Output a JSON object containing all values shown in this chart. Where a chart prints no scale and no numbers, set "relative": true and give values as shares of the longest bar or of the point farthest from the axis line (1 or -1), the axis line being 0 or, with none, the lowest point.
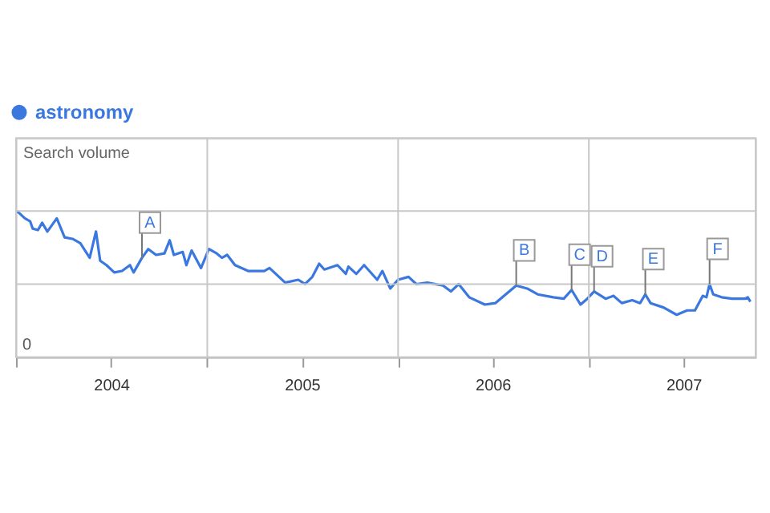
{
  "chart_data": {
    "type": "line",
    "relative": true,
    "ylabel": "Search volume",
    "legend": "top left",
    "grid": true,
    "line_style": "solid",
    "marker": "none",
    "x": [
      "2004-01-03",
      "2004-01-18",
      "2004-01-28",
      "2004-02-02",
      "2004-02-12",
      "2004-02-20",
      "2004-03-01",
      "2004-03-19",
      "2004-04-03",
      "2004-04-18",
      "2004-05-03",
      "2004-05-21",
      "2004-06-02",
      "2004-06-10",
      "2004-06-22",
      "2004-07-07",
      "2004-07-22",
      "2004-08-06",
      "2004-08-13",
      "2004-08-29",
      "2004-09-10",
      "2004-09-25",
      "2004-10-11",
      "2004-10-21",
      "2004-10-29",
      "2004-11-15",
      "2004-11-22",
      "2004-12-02",
      "2004-12-20",
      "2005-01-04",
      "2005-01-19",
      "2005-01-29",
      "2005-02-08",
      "2005-02-23",
      "2005-03-20",
      "2005-04-20",
      "2005-04-30",
      "2005-05-30",
      "2005-06-24",
      "2005-07-07",
      "2005-07-21",
      "2005-08-03",
      "2005-08-13",
      "2005-09-07",
      "2005-09-23",
      "2005-09-28",
      "2005-10-13",
      "2005-10-28",
      "2005-11-07",
      "2005-11-22",
      "2005-12-02",
      "2005-12-17",
      "2006-01-01",
      "2006-01-21",
      "2006-02-05",
      "2006-02-26",
      "2006-03-28",
      "2006-04-12",
      "2006-04-27",
      "2006-05-17",
      "2006-06-16",
      "2006-07-06",
      "2006-08-15",
      "2006-09-05",
      "2006-09-25",
      "2006-10-25",
      "2006-11-14",
      "2006-11-29",
      "2006-12-16",
      "2006-12-29",
      "2007-01-11",
      "2007-02-02",
      "2007-02-17",
      "2007-03-05",
      "2007-03-25",
      "2007-04-09",
      "2007-04-19",
      "2007-04-29",
      "2007-05-24",
      "2007-06-18",
      "2007-07-08",
      "2007-07-23",
      "2007-08-07",
      "2007-08-14",
      "2007-08-20",
      "2007-08-27",
      "2007-09-12",
      "2007-10-02",
      "2007-10-27",
      "2007-11-01",
      "2007-11-06"
    ],
    "series": [
      {
        "name": "astronomy",
        "color": "#3a78e0",
        "values": [
          1.0,
          0.95,
          0.93,
          0.88,
          0.87,
          0.92,
          0.86,
          0.95,
          0.82,
          0.81,
          0.78,
          0.68,
          0.86,
          0.66,
          0.63,
          0.58,
          0.59,
          0.63,
          0.58,
          0.68,
          0.74,
          0.7,
          0.71,
          0.8,
          0.7,
          0.72,
          0.63,
          0.73,
          0.61,
          0.74,
          0.71,
          0.68,
          0.7,
          0.63,
          0.59,
          0.59,
          0.61,
          0.51,
          0.53,
          0.5,
          0.55,
          0.64,
          0.6,
          0.63,
          0.57,
          0.62,
          0.57,
          0.63,
          0.59,
          0.53,
          0.59,
          0.47,
          0.53,
          0.55,
          0.5,
          0.51,
          0.49,
          0.45,
          0.5,
          0.41,
          0.36,
          0.37,
          0.49,
          0.47,
          0.43,
          0.41,
          0.4,
          0.46,
          0.36,
          0.4,
          0.45,
          0.4,
          0.42,
          0.37,
          0.39,
          0.37,
          0.43,
          0.37,
          0.34,
          0.29,
          0.32,
          0.32,
          0.42,
          0.41,
          0.5,
          0.43,
          0.41,
          0.4,
          0.4,
          0.41,
          0.38
        ]
      }
    ],
    "xlim": [
      "2004-01-01",
      "2007-11-16"
    ],
    "xticks": [
      {
        "value": "2004-01-01",
        "label": null
      },
      {
        "value": "2004-07-01",
        "label": "2004"
      },
      {
        "value": "2005-01-01",
        "label": null
      },
      {
        "value": "2005-07-01",
        "label": "2005"
      },
      {
        "value": "2006-01-01",
        "label": null
      },
      {
        "value": "2006-07-01",
        "label": "2006"
      },
      {
        "value": "2007-01-01",
        "label": null
      },
      {
        "value": "2007-07-01",
        "label": "2007"
      }
    ],
    "annotations": [
      {
        "text": "A",
        "x": "2004-08-29",
        "y": 0.68
      },
      {
        "text": "B",
        "x": "2006-08-15",
        "y": 0.49
      },
      {
        "text": "C",
        "x": "2006-11-29",
        "y": 0.46
      },
      {
        "text": "D",
        "x": "2007-01-11",
        "y": 0.45
      },
      {
        "text": "E",
        "x": "2007-04-19",
        "y": 0.43
      },
      {
        "text": "F",
        "x": "2007-08-20",
        "y": 0.5
      },
      "0"
    ]
  }
}
